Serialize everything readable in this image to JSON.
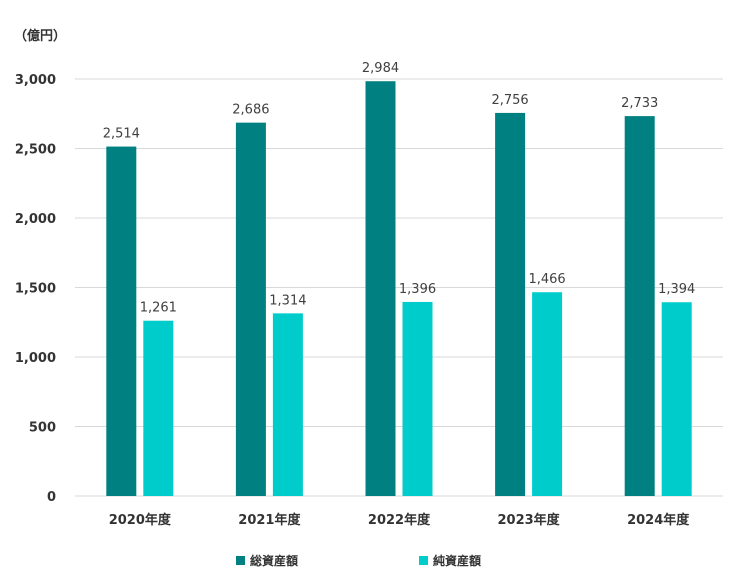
{
  "chart_data": {
    "type": "bar",
    "unit_label": "（億円）",
    "categories": [
      "2020年度",
      "2021年度",
      "2022年度",
      "2023年度",
      "2024年度"
    ],
    "series": [
      {
        "name": "総資産額",
        "color": "#008080",
        "values": [
          2514,
          2686,
          2984,
          2756,
          2733
        ],
        "labels": [
          "2,514",
          "2,686",
          "2,984",
          "2,756",
          "2,733"
        ]
      },
      {
        "name": "純資産額",
        "color": "#00CCCC",
        "values": [
          1261,
          1314,
          1396,
          1466,
          1394
        ],
        "labels": [
          "1,261",
          "1,314",
          "1,396",
          "1,466",
          "1,394"
        ]
      }
    ],
    "ylim": [
      0,
      3000
    ],
    "yticks": [
      0,
      500,
      1000,
      1500,
      2000,
      2500,
      3000
    ],
    "ytick_labels": [
      "0",
      "500",
      "1,000",
      "1,500",
      "2,000",
      "2,500",
      "3,000"
    ],
    "grid": true,
    "legend": "bottom"
  }
}
